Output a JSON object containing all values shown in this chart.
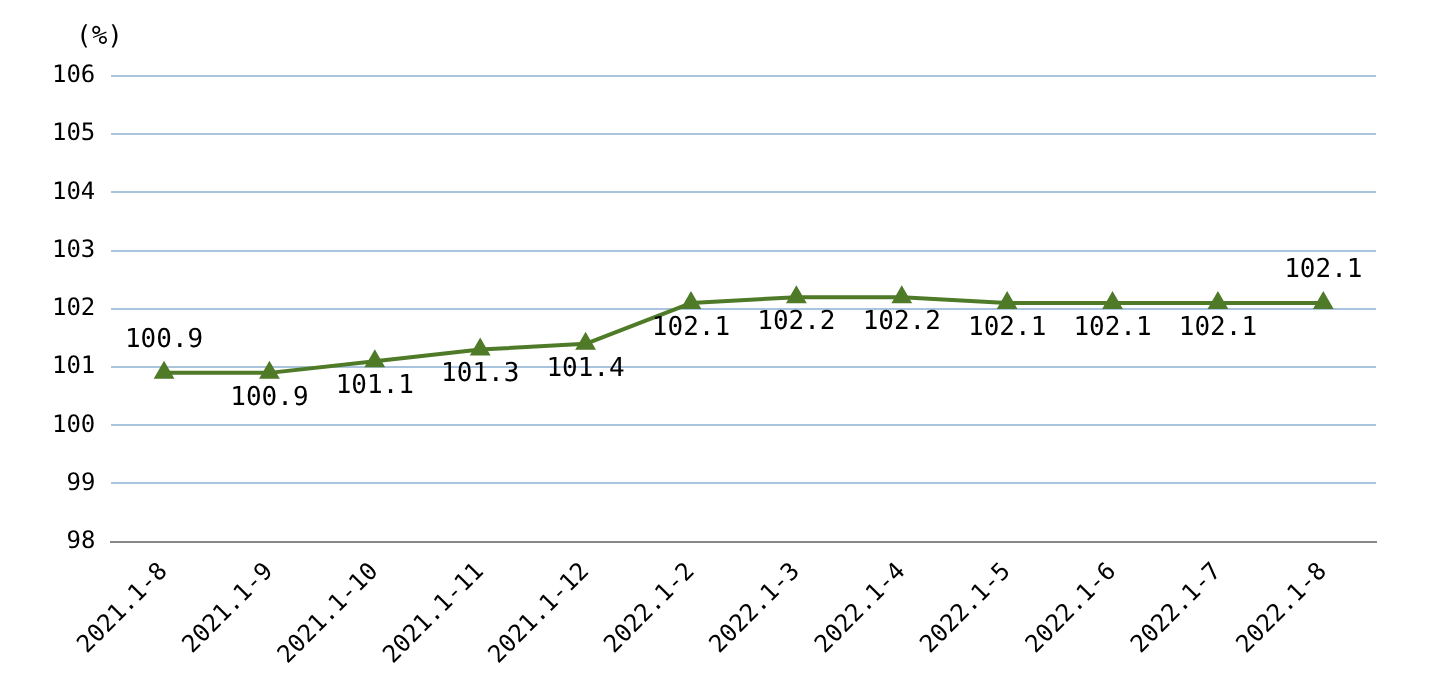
{
  "chart_data": {
    "type": "line",
    "ylabel": "(%)",
    "categories": [
      "2021.1-8",
      "2021.1-9",
      "2021.1-10",
      "2021.1-11",
      "2021.1-12",
      "2022.1-2",
      "2022.1-3",
      "2022.1-4",
      "2022.1-5",
      "2022.1-6",
      "2022.1-7",
      "2022.1-8"
    ],
    "series": [
      {
        "color": "#4f7a28",
        "values": [
          100.9,
          100.9,
          101.1,
          101.3,
          101.4,
          102.1,
          102.2,
          102.2,
          102.1,
          102.1,
          102.1,
          102.1
        ]
      }
    ],
    "ylim": [
      98,
      106
    ],
    "yticks": [
      98,
      99,
      100,
      101,
      102,
      103,
      104,
      105,
      106
    ],
    "grid": "y",
    "legend": false,
    "marker": "triangle",
    "line_style": "solid",
    "data_labels": true
  }
}
